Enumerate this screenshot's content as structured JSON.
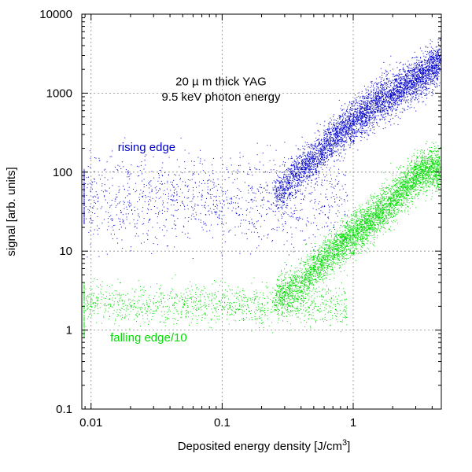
{
  "chart_data": {
    "type": "scatter",
    "x_scale": "log",
    "y_scale": "log",
    "xlim": [
      0.0085,
      4.7
    ],
    "ylim": [
      0.1,
      10000
    ],
    "grid": true,
    "xlabel": "Deposited energy density [J/cm",
    "xlabel_sup": "3",
    "xlabel_end": "]",
    "ylabel": "signal [arb. units]",
    "x_ticks": [
      0.01,
      0.1,
      1
    ],
    "x_tick_labels": [
      "0.01",
      "0.1",
      "1"
    ],
    "y_ticks": [
      0.1,
      1,
      10,
      100,
      1000,
      10000
    ],
    "y_tick_labels": [
      "0.1",
      "1",
      "10",
      "100",
      "1000",
      "10000"
    ],
    "annotations": [
      {
        "text": "20  µ m thick YAG",
        "x": 0.1,
        "y": 1250,
        "color": "#000000"
      },
      {
        "text": "9.5 keV photon energy",
        "x": 0.1,
        "y": 800,
        "color": "#000000"
      },
      {
        "text": "rising edge",
        "x": 0.016,
        "y": 185,
        "color": "#0000cc"
      },
      {
        "text": "falling edge/10",
        "x": 0.014,
        "y": 0.72,
        "color": "#00dd00"
      }
    ],
    "series": [
      {
        "name": "rising edge",
        "color": "#0000cc",
        "points": [
          [
            0.2,
            45
          ],
          [
            0.25,
            55
          ],
          [
            0.3,
            60
          ],
          [
            0.35,
            90
          ],
          [
            0.4,
            110
          ],
          [
            0.5,
            150
          ],
          [
            0.6,
            200
          ],
          [
            0.7,
            260
          ],
          [
            0.8,
            320
          ],
          [
            1.0,
            420
          ],
          [
            1.2,
            560
          ],
          [
            1.5,
            750
          ],
          [
            2.0,
            1000
          ],
          [
            2.5,
            1250
          ],
          [
            3.0,
            1500
          ],
          [
            4.0,
            2100
          ],
          [
            4.6,
            2600
          ]
        ]
      },
      {
        "name": "falling edge/10",
        "color": "#00dd00",
        "points": [
          [
            0.01,
            2
          ],
          [
            0.05,
            2
          ],
          [
            0.1,
            2
          ],
          [
            0.2,
            2.2
          ],
          [
            0.3,
            3
          ],
          [
            0.4,
            4
          ],
          [
            0.5,
            6
          ],
          [
            0.6,
            8
          ],
          [
            0.8,
            12
          ],
          [
            1.0,
            16
          ],
          [
            1.5,
            28
          ],
          [
            2.0,
            45
          ],
          [
            2.5,
            65
          ],
          [
            3.0,
            90
          ],
          [
            3.5,
            110
          ]
        ]
      }
    ]
  }
}
